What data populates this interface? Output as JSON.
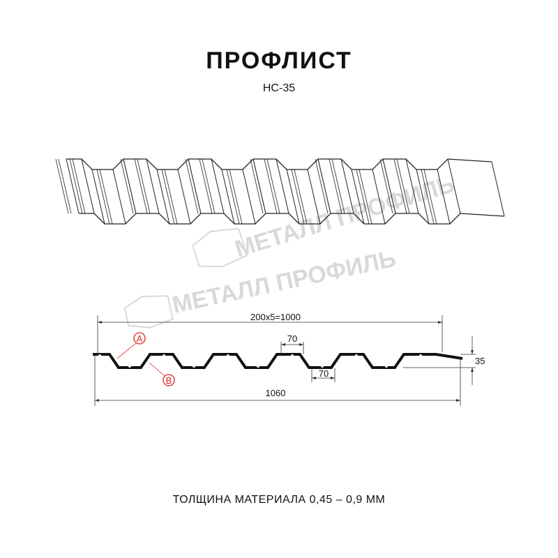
{
  "header": {
    "title": "ПРОФЛИСТ",
    "model": "НС-35"
  },
  "watermark": {
    "brand": "МЕТАЛЛ ПРОФИЛЬ"
  },
  "drawing": {
    "dim_pitch_total": "200x5=1000",
    "dim_top_flat": "70",
    "dim_bottom_flat": "70",
    "dim_height": "35",
    "dim_full_width": "1060",
    "marker_a": "A",
    "marker_b": "B",
    "marker_color": "#e02020"
  },
  "footer": {
    "thickness": "ТОЛЩИНА МАТЕРИАЛА 0,45 – 0,9 ММ"
  }
}
